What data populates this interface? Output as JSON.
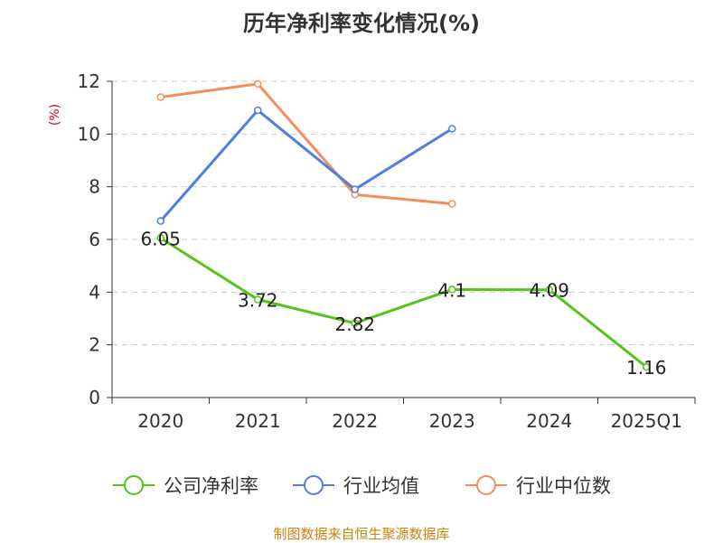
{
  "chart_data": {
    "type": "line",
    "title": "历年净利率变化情况(%)",
    "unit_label": "(%)",
    "categories": [
      "2020",
      "2021",
      "2022",
      "2023",
      "2024",
      "2025Q1"
    ],
    "ylim": [
      0,
      12
    ],
    "yticks": [
      0,
      2,
      4,
      6,
      8,
      10,
      12
    ],
    "grid": true,
    "legend_position": "bottom",
    "series": [
      {
        "name": "公司净利率",
        "color": "#52c41a",
        "values": [
          6.05,
          3.72,
          2.82,
          4.1,
          4.09,
          1.16
        ],
        "labels": [
          "6.05",
          "3.72",
          "2.82",
          "4.1",
          "4.09",
          "1.16"
        ]
      },
      {
        "name": "行业均值",
        "color": "#4e7fde",
        "values": [
          6.7,
          10.9,
          7.9,
          10.2,
          null,
          null
        ]
      },
      {
        "name": "行业中位数",
        "color": "#f58d5a",
        "values": [
          11.4,
          11.9,
          7.7,
          7.35,
          null,
          null
        ]
      }
    ]
  },
  "source": "制图数据来自恒生聚源数据库"
}
